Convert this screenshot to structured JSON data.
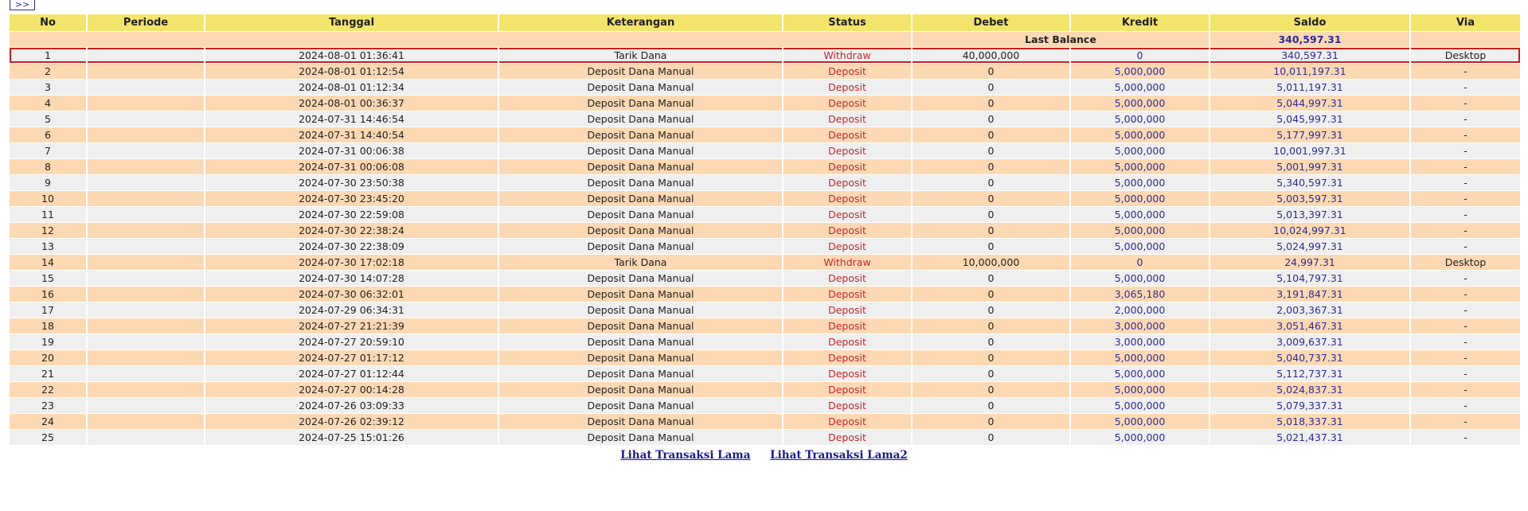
{
  "nav": {
    "next_label": ">>"
  },
  "columns": [
    "No",
    "Periode",
    "Tanggal",
    "Keterangan",
    "Status",
    "Debet",
    "Kredit",
    "Saldo",
    "Via"
  ],
  "last_balance": {
    "label": "Last Balance",
    "value": "340,597.31"
  },
  "colors": {
    "header": "#f3e46c",
    "row_peach": "#fdd9b3",
    "row_gray": "#efefef",
    "status": "#c0282d",
    "amount_blue": "#2c2c96",
    "highlight": "#c81e1e"
  },
  "rows": [
    {
      "no": "1",
      "periode": "",
      "tanggal": "2024-08-01 01:36:41",
      "keterangan": "Tarik Dana",
      "status": "Withdraw",
      "debet": "40,000,000",
      "kredit": "0",
      "saldo": "340,597.31",
      "via": "Desktop"
    },
    {
      "no": "2",
      "periode": "",
      "tanggal": "2024-08-01 01:12:54",
      "keterangan": "Deposit Dana Manual",
      "status": "Deposit",
      "debet": "0",
      "kredit": "5,000,000",
      "saldo": "10,011,197.31",
      "via": "-"
    },
    {
      "no": "3",
      "periode": "",
      "tanggal": "2024-08-01 01:12:34",
      "keterangan": "Deposit Dana Manual",
      "status": "Deposit",
      "debet": "0",
      "kredit": "5,000,000",
      "saldo": "5,011,197.31",
      "via": "-"
    },
    {
      "no": "4",
      "periode": "",
      "tanggal": "2024-08-01 00:36:37",
      "keterangan": "Deposit Dana Manual",
      "status": "Deposit",
      "debet": "0",
      "kredit": "5,000,000",
      "saldo": "5,044,997.31",
      "via": "-"
    },
    {
      "no": "5",
      "periode": "",
      "tanggal": "2024-07-31 14:46:54",
      "keterangan": "Deposit Dana Manual",
      "status": "Deposit",
      "debet": "0",
      "kredit": "5,000,000",
      "saldo": "5,045,997.31",
      "via": "-"
    },
    {
      "no": "6",
      "periode": "",
      "tanggal": "2024-07-31 14:40:54",
      "keterangan": "Deposit Dana Manual",
      "status": "Deposit",
      "debet": "0",
      "kredit": "5,000,000",
      "saldo": "5,177,997.31",
      "via": "-"
    },
    {
      "no": "7",
      "periode": "",
      "tanggal": "2024-07-31 00:06:38",
      "keterangan": "Deposit Dana Manual",
      "status": "Deposit",
      "debet": "0",
      "kredit": "5,000,000",
      "saldo": "10,001,997.31",
      "via": "-"
    },
    {
      "no": "8",
      "periode": "",
      "tanggal": "2024-07-31 00:06:08",
      "keterangan": "Deposit Dana Manual",
      "status": "Deposit",
      "debet": "0",
      "kredit": "5,000,000",
      "saldo": "5,001,997.31",
      "via": "-"
    },
    {
      "no": "9",
      "periode": "",
      "tanggal": "2024-07-30 23:50:38",
      "keterangan": "Deposit Dana Manual",
      "status": "Deposit",
      "debet": "0",
      "kredit": "5,000,000",
      "saldo": "5,340,597.31",
      "via": "-"
    },
    {
      "no": "10",
      "periode": "",
      "tanggal": "2024-07-30 23:45:20",
      "keterangan": "Deposit Dana Manual",
      "status": "Deposit",
      "debet": "0",
      "kredit": "5,000,000",
      "saldo": "5,003,597.31",
      "via": "-"
    },
    {
      "no": "11",
      "periode": "",
      "tanggal": "2024-07-30 22:59:08",
      "keterangan": "Deposit Dana Manual",
      "status": "Deposit",
      "debet": "0",
      "kredit": "5,000,000",
      "saldo": "5,013,397.31",
      "via": "-"
    },
    {
      "no": "12",
      "periode": "",
      "tanggal": "2024-07-30 22:38:24",
      "keterangan": "Deposit Dana Manual",
      "status": "Deposit",
      "debet": "0",
      "kredit": "5,000,000",
      "saldo": "10,024,997.31",
      "via": "-"
    },
    {
      "no": "13",
      "periode": "",
      "tanggal": "2024-07-30 22:38:09",
      "keterangan": "Deposit Dana Manual",
      "status": "Deposit",
      "debet": "0",
      "kredit": "5,000,000",
      "saldo": "5,024,997.31",
      "via": "-"
    },
    {
      "no": "14",
      "periode": "",
      "tanggal": "2024-07-30 17:02:18",
      "keterangan": "Tarik Dana",
      "status": "Withdraw",
      "debet": "10,000,000",
      "kredit": "0",
      "saldo": "24,997.31",
      "via": "Desktop"
    },
    {
      "no": "15",
      "periode": "",
      "tanggal": "2024-07-30 14:07:28",
      "keterangan": "Deposit Dana Manual",
      "status": "Deposit",
      "debet": "0",
      "kredit": "5,000,000",
      "saldo": "5,104,797.31",
      "via": "-"
    },
    {
      "no": "16",
      "periode": "",
      "tanggal": "2024-07-30 06:32:01",
      "keterangan": "Deposit Dana Manual",
      "status": "Deposit",
      "debet": "0",
      "kredit": "3,065,180",
      "saldo": "3,191,847.31",
      "via": "-"
    },
    {
      "no": "17",
      "periode": "",
      "tanggal": "2024-07-29 06:34:31",
      "keterangan": "Deposit Dana Manual",
      "status": "Deposit",
      "debet": "0",
      "kredit": "2,000,000",
      "saldo": "2,003,367.31",
      "via": "-"
    },
    {
      "no": "18",
      "periode": "",
      "tanggal": "2024-07-27 21:21:39",
      "keterangan": "Deposit Dana Manual",
      "status": "Deposit",
      "debet": "0",
      "kredit": "3,000,000",
      "saldo": "3,051,467.31",
      "via": "-"
    },
    {
      "no": "19",
      "periode": "",
      "tanggal": "2024-07-27 20:59:10",
      "keterangan": "Deposit Dana Manual",
      "status": "Deposit",
      "debet": "0",
      "kredit": "3,000,000",
      "saldo": "3,009,637.31",
      "via": "-"
    },
    {
      "no": "20",
      "periode": "",
      "tanggal": "2024-07-27 01:17:12",
      "keterangan": "Deposit Dana Manual",
      "status": "Deposit",
      "debet": "0",
      "kredit": "5,000,000",
      "saldo": "5,040,737.31",
      "via": "-"
    },
    {
      "no": "21",
      "periode": "",
      "tanggal": "2024-07-27 01:12:44",
      "keterangan": "Deposit Dana Manual",
      "status": "Deposit",
      "debet": "0",
      "kredit": "5,000,000",
      "saldo": "5,112,737.31",
      "via": "-"
    },
    {
      "no": "22",
      "periode": "",
      "tanggal": "2024-07-27 00:14:28",
      "keterangan": "Deposit Dana Manual",
      "status": "Deposit",
      "debet": "0",
      "kredit": "5,000,000",
      "saldo": "5,024,837.31",
      "via": "-"
    },
    {
      "no": "23",
      "periode": "",
      "tanggal": "2024-07-26 03:09:33",
      "keterangan": "Deposit Dana Manual",
      "status": "Deposit",
      "debet": "0",
      "kredit": "5,000,000",
      "saldo": "5,079,337.31",
      "via": "-"
    },
    {
      "no": "24",
      "periode": "",
      "tanggal": "2024-07-26 02:39:12",
      "keterangan": "Deposit Dana Manual",
      "status": "Deposit",
      "debet": "0",
      "kredit": "5,000,000",
      "saldo": "5,018,337.31",
      "via": "-"
    },
    {
      "no": "25",
      "periode": "",
      "tanggal": "2024-07-25 15:01:26",
      "keterangan": "Deposit Dana Manual",
      "status": "Deposit",
      "debet": "0",
      "kredit": "5,000,000",
      "saldo": "5,021,437.31",
      "via": "-"
    }
  ],
  "footer": {
    "link1": "Lihat Transaksi Lama",
    "link2": "Lihat Transaksi Lama2"
  }
}
